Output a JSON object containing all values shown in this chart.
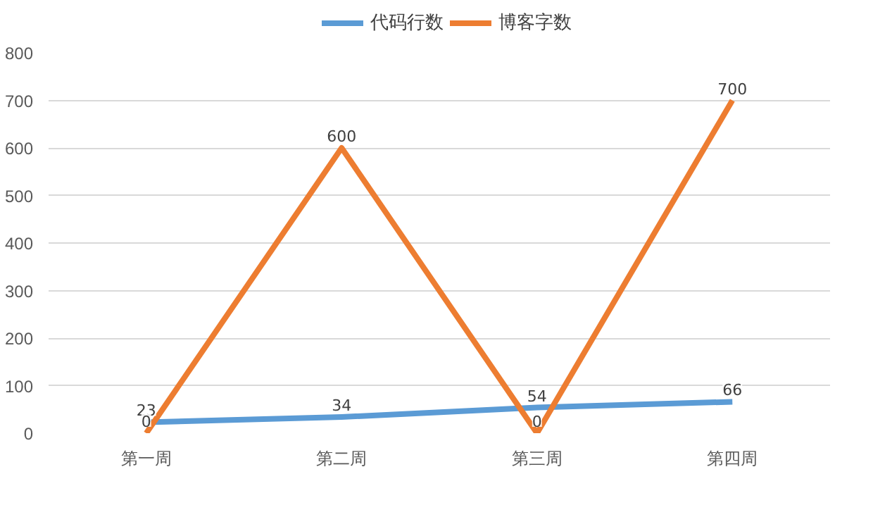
{
  "chart_data": {
    "type": "line",
    "categories": [
      "第一周",
      "第二周",
      "第三周",
      "第四周"
    ],
    "series": [
      {
        "name": "代码行数",
        "color": "#5b9bd5",
        "values": [
          23,
          34,
          54,
          66
        ]
      },
      {
        "name": "博客字数",
        "color": "#ed7d31",
        "values": [
          0,
          600,
          0,
          700
        ]
      }
    ],
    "ylim": [
      0,
      800
    ],
    "yticks": [
      0,
      100,
      200,
      300,
      400,
      500,
      600,
      700,
      800
    ],
    "grid": "y",
    "legend": "top",
    "data_labels": true,
    "marker": "none"
  }
}
